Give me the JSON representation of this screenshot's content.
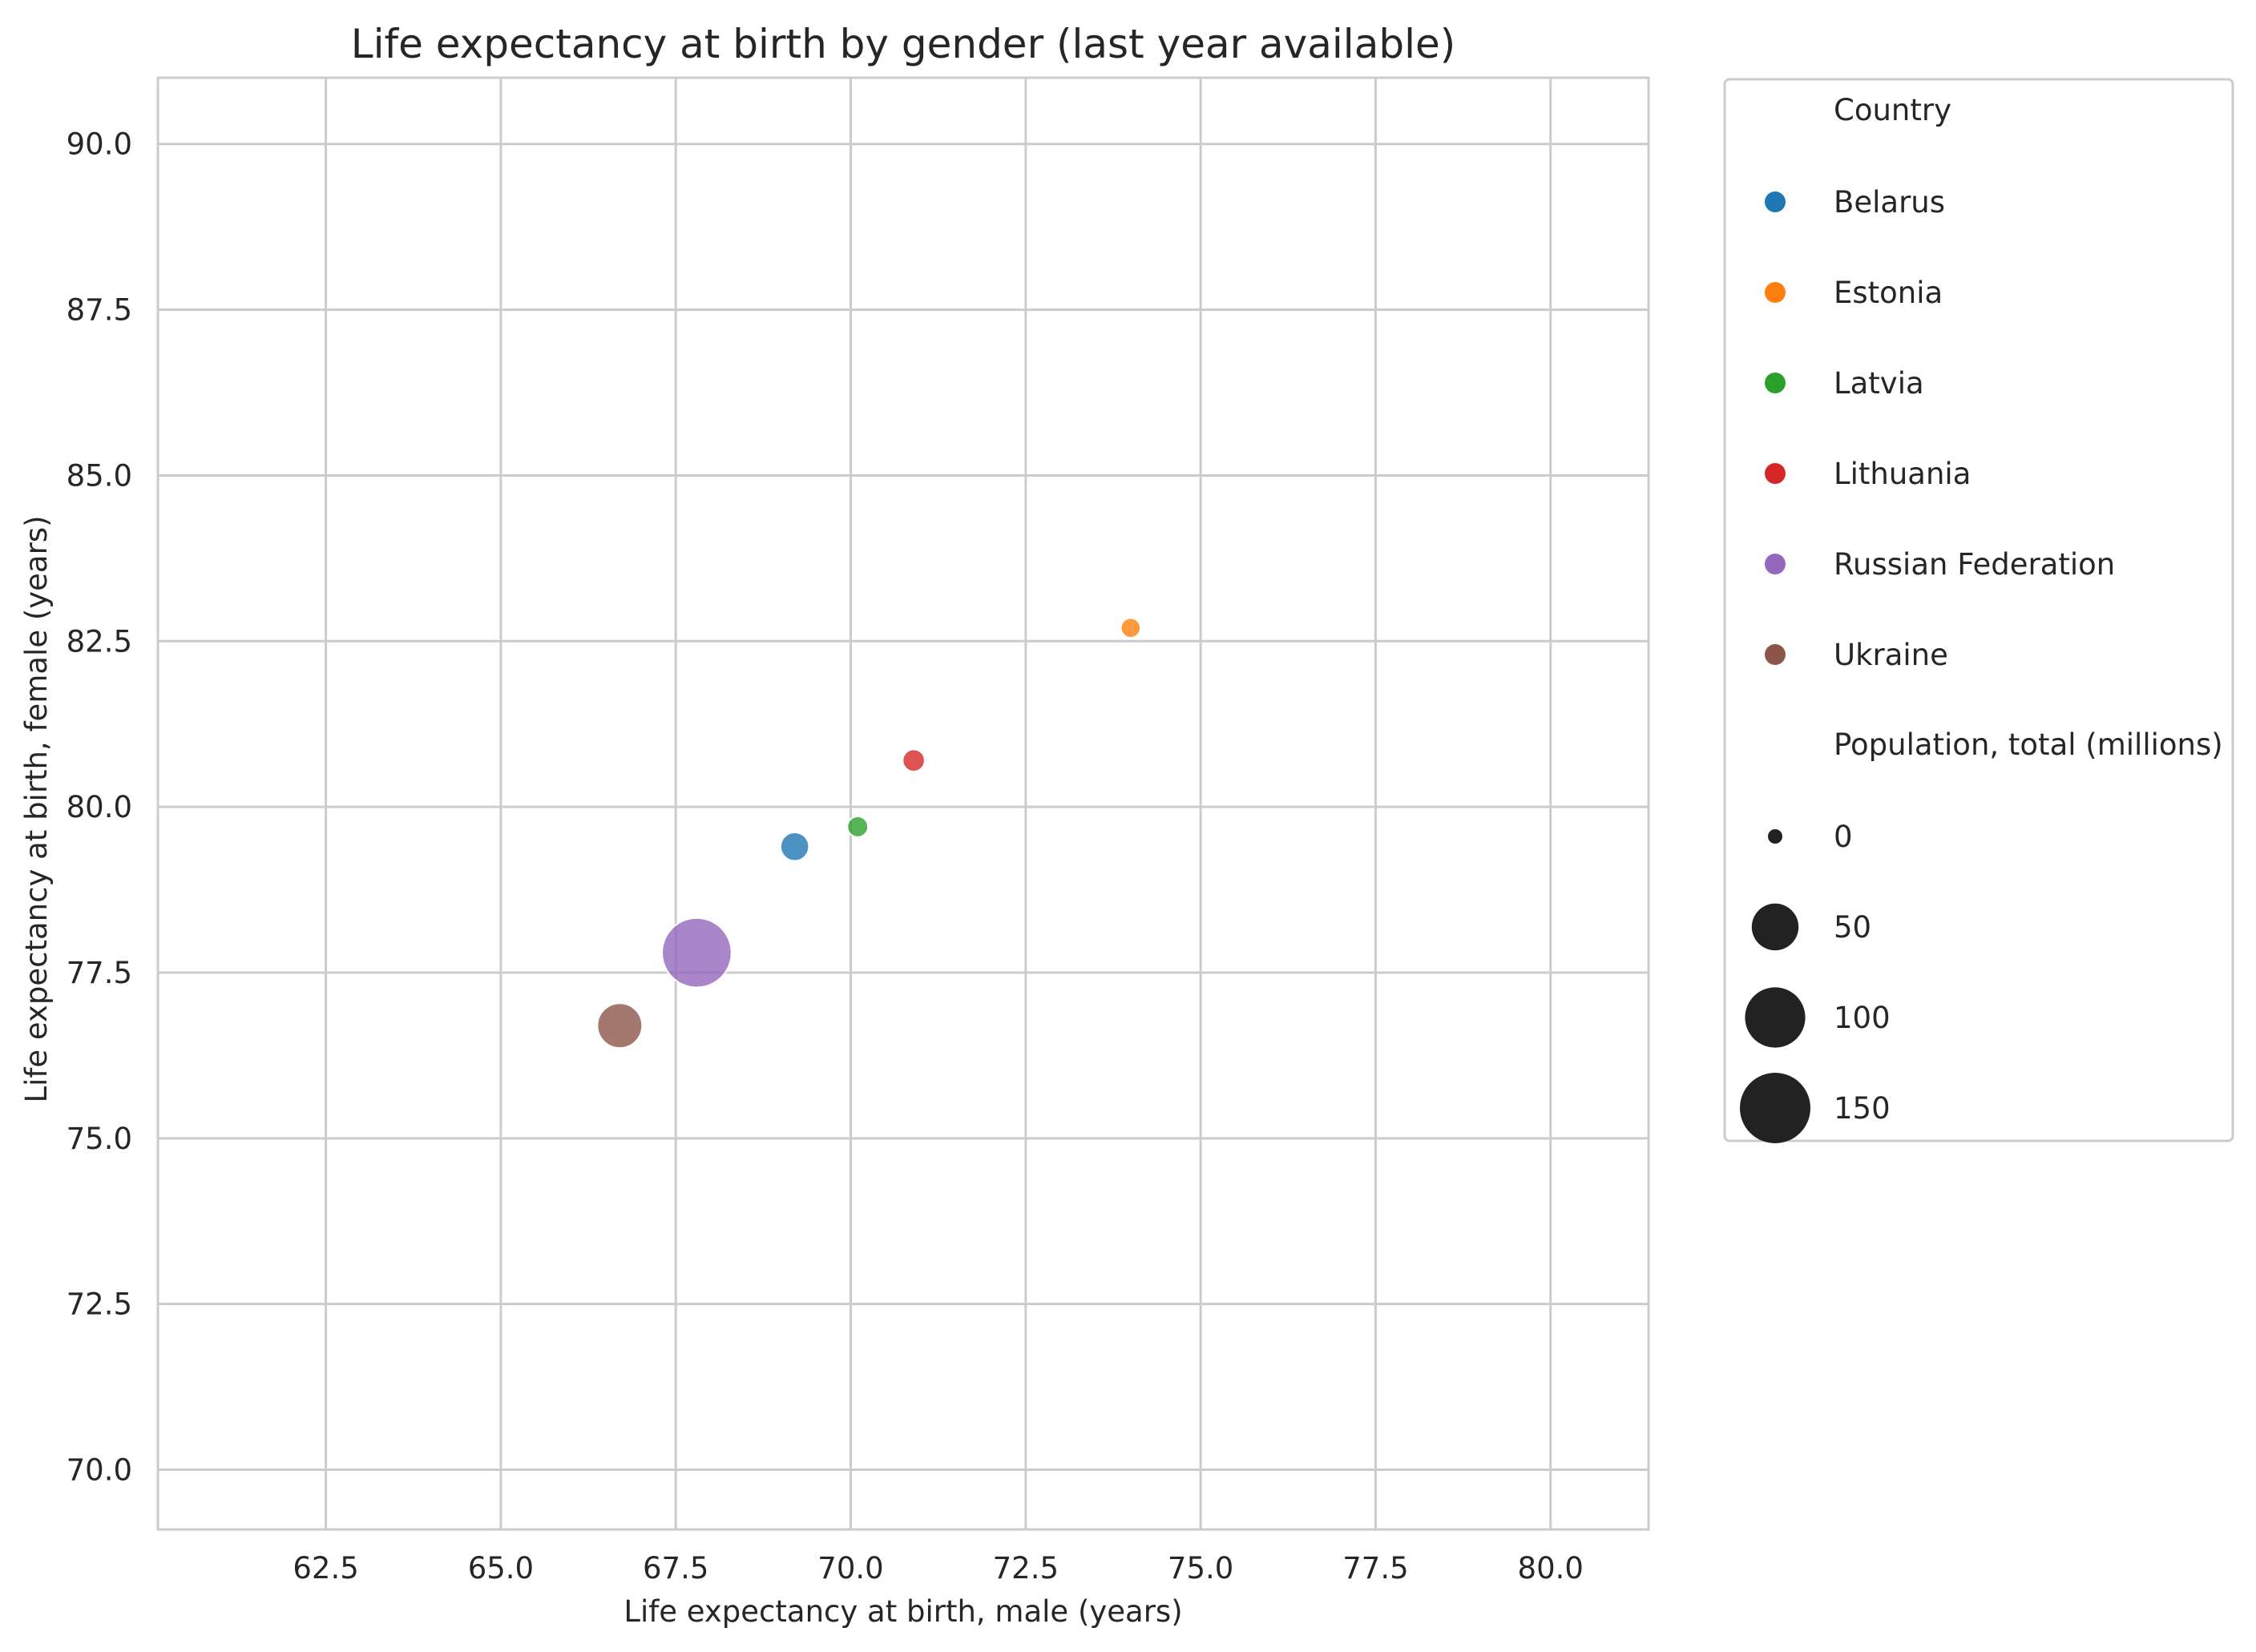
{
  "chart_data": {
    "type": "scatter",
    "title": "Life expectancy at birth by gender (last year available)",
    "xlabel": "Life expectancy at birth, male (years)",
    "ylabel": "Life expectancy at birth, female (years)",
    "xlim": [
      60.1,
      81.4
    ],
    "ylim": [
      69.1,
      91.0
    ],
    "xticks": [
      "62.5",
      "65.0",
      "67.5",
      "70.0",
      "72.5",
      "75.0",
      "77.5",
      "80.0"
    ],
    "yticks": [
      "70.0",
      "72.5",
      "75.0",
      "77.5",
      "80.0",
      "82.5",
      "85.0",
      "87.5",
      "90.0"
    ],
    "grid": true,
    "legend_position": "outside-right",
    "hue_title": "Country",
    "size_title": "Population, total (millions)",
    "size_levels": [
      "0",
      "50",
      "100",
      "150"
    ],
    "size_legend_color": "#222222",
    "series": [
      {
        "name": "Belarus",
        "color": "#1f77b4",
        "x": 69.2,
        "y": 79.4,
        "population_millions": 9.4
      },
      {
        "name": "Estonia",
        "color": "#ff7f0e",
        "x": 74.0,
        "y": 82.7,
        "population_millions": 1.3
      },
      {
        "name": "Latvia",
        "color": "#2ca02c",
        "x": 70.1,
        "y": 79.7,
        "population_millions": 1.9
      },
      {
        "name": "Lithuania",
        "color": "#d62728",
        "x": 70.9,
        "y": 80.7,
        "population_millions": 2.8
      },
      {
        "name": "Russian Federation",
        "color": "#9467bd",
        "x": 67.8,
        "y": 77.8,
        "population_millions": 144.4
      },
      {
        "name": "Ukraine",
        "color": "#8c564b",
        "x": 66.7,
        "y": 76.7,
        "population_millions": 44.0
      }
    ]
  }
}
